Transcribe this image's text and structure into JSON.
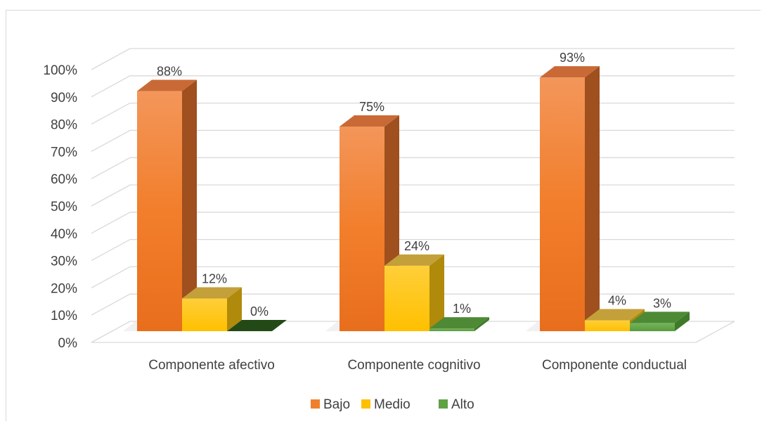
{
  "chart_data": {
    "type": "bar",
    "style": "3d-clustered-column",
    "categories": [
      "Componente afectivo",
      "Componente cognitivo",
      "Componente conductual"
    ],
    "series": [
      {
        "name": "Bajo",
        "values": [
          88,
          75,
          93
        ],
        "labels": [
          "88%",
          "75%",
          "93%"
        ],
        "color": "#f07f2c"
      },
      {
        "name": "Medio",
        "values": [
          12,
          24,
          4
        ],
        "labels": [
          "12%",
          "24%",
          "4%"
        ],
        "color": "#ffc000"
      },
      {
        "name": "Alto",
        "values": [
          0,
          1,
          3
        ],
        "labels": [
          "0%",
          "1%",
          "3%"
        ],
        "color": "#5fa244"
      }
    ],
    "ylim": [
      0,
      100
    ],
    "yticks": [
      "0%",
      "10%",
      "20%",
      "30%",
      "40%",
      "50%",
      "60%",
      "70%",
      "80%",
      "90%",
      "100%"
    ],
    "grid": true,
    "legend": "bottom"
  }
}
